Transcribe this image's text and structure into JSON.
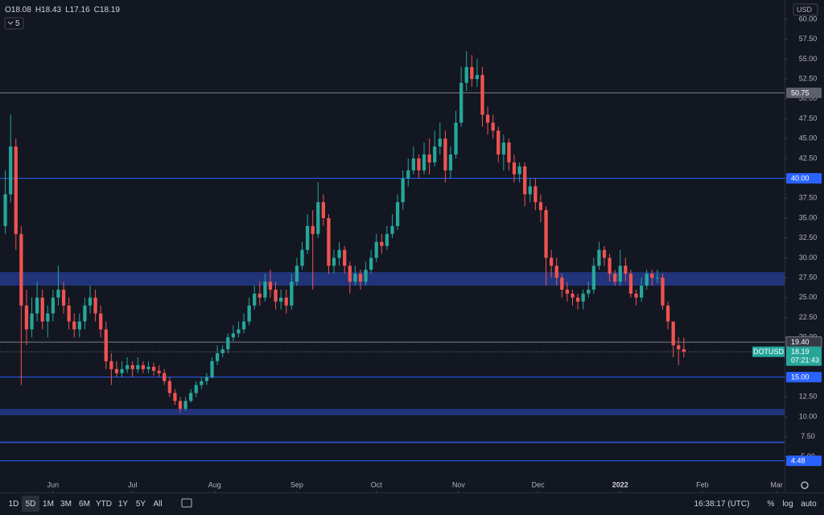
{
  "chart_data": {
    "type": "candlestick",
    "symbol": "DOTUSD",
    "ohlc_legend": [
      "O18.08",
      "H18.43",
      "L17.16",
      "C18.19"
    ],
    "interval": "5",
    "currency": "USD",
    "up_color": "#26a69a",
    "down_color": "#ef5350",
    "x": [
      "2021-05-14",
      "2021-05-16",
      "2021-05-18",
      "2021-05-20",
      "2021-05-22",
      "2021-05-24",
      "2021-05-26",
      "2021-05-28",
      "2021-05-30",
      "2021-06-01",
      "2021-06-03",
      "2021-06-05",
      "2021-06-07",
      "2021-06-09",
      "2021-06-11",
      "2021-06-13",
      "2021-06-15",
      "2021-06-17",
      "2021-06-19",
      "2021-06-21",
      "2021-06-23",
      "2021-06-25",
      "2021-06-27",
      "2021-06-29",
      "2021-07-01",
      "2021-07-03",
      "2021-07-05",
      "2021-07-07",
      "2021-07-09",
      "2021-07-11",
      "2021-07-13",
      "2021-07-15",
      "2021-07-17",
      "2021-07-19",
      "2021-07-21",
      "2021-07-23",
      "2021-07-25",
      "2021-07-27",
      "2021-07-29",
      "2021-07-31",
      "2021-08-02",
      "2021-08-04",
      "2021-08-06",
      "2021-08-08",
      "2021-08-10",
      "2021-08-12",
      "2021-08-14",
      "2021-08-16",
      "2021-08-18",
      "2021-08-20",
      "2021-08-22",
      "2021-08-24",
      "2021-08-26",
      "2021-08-28",
      "2021-08-30",
      "2021-09-01",
      "2021-09-03",
      "2021-09-05",
      "2021-09-07",
      "2021-09-09",
      "2021-09-11",
      "2021-09-13",
      "2021-09-15",
      "2021-09-17",
      "2021-09-19",
      "2021-09-21",
      "2021-09-23",
      "2021-09-25",
      "2021-09-27",
      "2021-09-29",
      "2021-10-01",
      "2021-10-03",
      "2021-10-05",
      "2021-10-07",
      "2021-10-09",
      "2021-10-11",
      "2021-10-13",
      "2021-10-15",
      "2021-10-17",
      "2021-10-19",
      "2021-10-21",
      "2021-10-23",
      "2021-10-25",
      "2021-10-27",
      "2021-10-29",
      "2021-10-31",
      "2021-11-02",
      "2021-11-04",
      "2021-11-06",
      "2021-11-08",
      "2021-11-10",
      "2021-11-12",
      "2021-11-14",
      "2021-11-16",
      "2021-11-18",
      "2021-11-20",
      "2021-11-22",
      "2021-11-24",
      "2021-11-26",
      "2021-11-28",
      "2021-11-30",
      "2021-12-02",
      "2021-12-04",
      "2021-12-06",
      "2021-12-08",
      "2021-12-10",
      "2021-12-12",
      "2021-12-14",
      "2021-12-16",
      "2021-12-18",
      "2021-12-20",
      "2021-12-22",
      "2021-12-24",
      "2021-12-26",
      "2021-12-28",
      "2021-12-30",
      "2022-01-01",
      "2022-01-03",
      "2022-01-05",
      "2022-01-07",
      "2022-01-09",
      "2022-01-11",
      "2022-01-13",
      "2022-01-15",
      "2022-01-17",
      "2022-01-19",
      "2022-01-21",
      "2022-01-23",
      "2022-01-25"
    ],
    "open": [
      34,
      38,
      44,
      33,
      24,
      21,
      23,
      25,
      22,
      23,
      25,
      26,
      24,
      22,
      21,
      22,
      24,
      25,
      23,
      21,
      17,
      16,
      15.5,
      16,
      16.5,
      16,
      16.5,
      16,
      16.3,
      15.8,
      15.5,
      14.5,
      13,
      12,
      11,
      12,
      13,
      14,
      14.5,
      15,
      17,
      18,
      18.5,
      20,
      20.5,
      21,
      22,
      24,
      25.5,
      25,
      27,
      26,
      24.5,
      25,
      24,
      27,
      29,
      31,
      34,
      33,
      37,
      35,
      29,
      30,
      31,
      29,
      27,
      28,
      27,
      28.5,
      30,
      32,
      31.5,
      33,
      34,
      37,
      40,
      41,
      42.5,
      41,
      43,
      42,
      44,
      45,
      41,
      43,
      47,
      52,
      54,
      52.5,
      53,
      48,
      47,
      46,
      43,
      44.5,
      42,
      40.5,
      41.5,
      38,
      39,
      37,
      36,
      30,
      29,
      27.5,
      26,
      25.5,
      25,
      24.5,
      25.5,
      26,
      29,
      31,
      30,
      28,
      27,
      29,
      28,
      25.5,
      25,
      26.5,
      28,
      27.5,
      27.5,
      24,
      22,
      19,
      18.5
    ],
    "high": [
      41,
      48,
      45,
      34,
      26,
      25,
      27,
      26,
      24,
      26,
      29,
      27,
      25,
      23,
      23,
      25,
      26.5,
      26,
      24,
      22,
      18,
      17,
      17,
      17.5,
      17,
      17.5,
      17,
      17,
      16.8,
      16.5,
      16,
      15,
      13.5,
      12.5,
      12.5,
      13.5,
      14.5,
      15,
      15.5,
      17.5,
      19,
      19,
      20.5,
      21.5,
      22,
      23,
      25,
      26.5,
      27,
      28,
      28.5,
      27,
      26,
      26,
      28,
      30,
      32,
      35.5,
      36,
      39.5,
      38,
      35.5,
      31,
      32,
      31.5,
      29.5,
      29,
      28.5,
      29.5,
      31,
      33,
      33,
      34,
      35.5,
      38,
      41,
      42.5,
      44,
      43,
      44.5,
      45,
      46,
      47,
      46,
      44,
      48.5,
      54,
      56,
      55.5,
      55,
      54,
      49,
      48,
      46.5,
      45.5,
      45,
      43,
      42,
      42,
      40,
      40,
      38,
      36.5,
      31,
      30,
      28,
      27,
      26,
      25.5,
      26,
      27,
      30,
      32,
      31.5,
      30.5,
      28.5,
      31,
      30,
      28.5,
      26,
      27.5,
      28.5,
      28.5,
      28.5,
      28,
      24.5,
      22,
      20,
      20
    ],
    "low": [
      33,
      37,
      31,
      14,
      19,
      20,
      22,
      21,
      20,
      22,
      24,
      23,
      21,
      20,
      20,
      21,
      23,
      22,
      20,
      16,
      14,
      15,
      15,
      15.5,
      15,
      15.5,
      15.5,
      15.5,
      15.2,
      15,
      14,
      12.5,
      11.5,
      10.5,
      10.8,
      11.8,
      12.5,
      13.5,
      14,
      14.8,
      16.5,
      17.5,
      18,
      19.5,
      20,
      20.5,
      21.5,
      23.5,
      24,
      24.5,
      25,
      23.5,
      23.5,
      23,
      23.5,
      26.5,
      28.5,
      30.5,
      26,
      32.5,
      34,
      28,
      28,
      29,
      28,
      25.5,
      26.5,
      26,
      26.5,
      28,
      29.5,
      30.5,
      31,
      32.5,
      33.5,
      36,
      39,
      40.5,
      40,
      40.5,
      40.5,
      41.5,
      43,
      39.5,
      40,
      42.5,
      46.5,
      51,
      51.5,
      51.5,
      46.5,
      45.5,
      45,
      42,
      41,
      41,
      39.5,
      39.5,
      36.5,
      37,
      36,
      34.5,
      26.5,
      27.5,
      26.5,
      25,
      24.5,
      24,
      23.5,
      23.5,
      25,
      25.5,
      28.5,
      29,
      27,
      26.5,
      26.5,
      27,
      25,
      24,
      24.5,
      26,
      26.5,
      26.8,
      23.5,
      21,
      17.5,
      16.5,
      17.5
    ],
    "close": [
      38,
      44,
      33,
      24,
      21,
      23,
      25,
      22,
      23,
      25,
      26,
      24,
      22,
      21,
      22,
      24,
      25,
      23,
      21,
      17,
      16,
      15.5,
      16,
      16.5,
      16,
      16.5,
      16,
      16.3,
      15.8,
      15.5,
      14.5,
      13,
      12,
      11,
      12,
      13,
      14,
      14.5,
      15,
      17,
      18,
      18.5,
      20,
      20.5,
      21,
      22,
      24,
      25.5,
      25,
      27,
      26,
      24.5,
      25,
      24,
      27,
      29,
      31,
      34,
      33,
      37,
      35,
      29,
      30,
      31,
      29,
      27,
      28,
      27,
      28.5,
      30,
      32,
      31.5,
      33,
      34,
      37,
      40,
      41,
      42.5,
      41,
      43,
      42,
      44,
      45,
      41,
      43,
      47,
      52,
      54,
      52.5,
      53,
      48,
      47,
      46,
      43,
      44.5,
      42,
      40.5,
      41.5,
      38,
      39,
      37,
      36,
      30,
      29,
      27.5,
      26,
      25.5,
      25,
      24.5,
      25.5,
      26,
      29,
      31,
      30,
      28,
      27,
      29,
      28,
      25.5,
      25,
      26.5,
      28,
      27.5,
      27.5,
      24,
      22,
      19,
      18.5,
      18.19
    ],
    "xlim": [
      "2021-05-12",
      "2022-03-04"
    ],
    "xticks": [
      {
        "value": "2021-06-01",
        "label": "Jun"
      },
      {
        "value": "2021-07-01",
        "label": "Jul"
      },
      {
        "value": "2021-08-01",
        "label": "Aug"
      },
      {
        "value": "2021-09-01",
        "label": "Sep"
      },
      {
        "value": "2021-10-01",
        "label": "Oct"
      },
      {
        "value": "2021-11-01",
        "label": "Nov"
      },
      {
        "value": "2021-12-01",
        "label": "Dec"
      },
      {
        "value": "2022-01-01",
        "label": "2022"
      },
      {
        "value": "2022-02-01",
        "label": "Feb"
      },
      {
        "value": "2022-03-01",
        "label": "Mar"
      }
    ],
    "ylim": [
      0.49,
      62.43
    ],
    "yticks": [
      {
        "value": 5,
        "label": "5.00"
      },
      {
        "value": 7.5,
        "label": "7.50"
      },
      {
        "value": 10,
        "label": "10.00"
      },
      {
        "value": 12.5,
        "label": "12.50"
      },
      {
        "value": 15,
        "label": "15.00"
      },
      {
        "value": 17.5,
        "label": "17.50"
      },
      {
        "value": 20,
        "label": "20.00"
      },
      {
        "value": 22.5,
        "label": "22.50"
      },
      {
        "value": 25,
        "label": "25.00"
      },
      {
        "value": 27.5,
        "label": "27.50"
      },
      {
        "value": 30,
        "label": "30.00"
      },
      {
        "value": 32.5,
        "label": "32.50"
      },
      {
        "value": 35,
        "label": "35.00"
      },
      {
        "value": 37.5,
        "label": "37.50"
      },
      {
        "value": 40,
        "label": "40.00"
      },
      {
        "value": 42.5,
        "label": "42.50"
      },
      {
        "value": 45,
        "label": "45.00"
      },
      {
        "value": 47.5,
        "label": "47.50"
      },
      {
        "value": 50,
        "label": "50.00"
      },
      {
        "value": 52.5,
        "label": "52.50"
      },
      {
        "value": 55,
        "label": "55.00"
      },
      {
        "value": 57.5,
        "label": "57.50"
      },
      {
        "value": 60,
        "label": "60.00"
      }
    ],
    "last_price": 18.19,
    "countdown": "07:21:43",
    "levels": [
      {
        "price": 50.75,
        "color": "#787b86",
        "box": "#5d606b",
        "show_label": true
      },
      {
        "price": {
          "value": 40,
          "label": "40.00"
        },
        "color": "#2962ff",
        "box": "#2962ff",
        "show_label": true
      },
      {
        "price": {
          "value": 19.4,
          "label": "19.40"
        },
        "color": "#787b86",
        "box": "#363a45",
        "show_label": true
      },
      {
        "price": {
          "value": 15,
          "label": "15.00"
        },
        "color": "#2962ff",
        "box": "#2962ff",
        "show_label": true
      },
      {
        "price": 6.8,
        "color": "#2e4dbd",
        "box": "#2962ff",
        "show_label": false
      },
      {
        "price": 4.48,
        "color": "#2962ff",
        "box": "#2962ff",
        "show_label": true
      }
    ],
    "zones": [
      {
        "from": 26.5,
        "to": 28.2,
        "color": "#243a8a"
      },
      {
        "from": 10.2,
        "to": 11,
        "color": "#243a8a"
      }
    ]
  },
  "toolbar": {
    "ranges": [
      "1D",
      "5D",
      "1M",
      "3M",
      "6M",
      "YTD",
      "1Y",
      "5Y",
      "All"
    ],
    "active": "5D",
    "time": "16:38:17 (UTC)",
    "options": [
      "%",
      "log",
      "auto"
    ]
  }
}
